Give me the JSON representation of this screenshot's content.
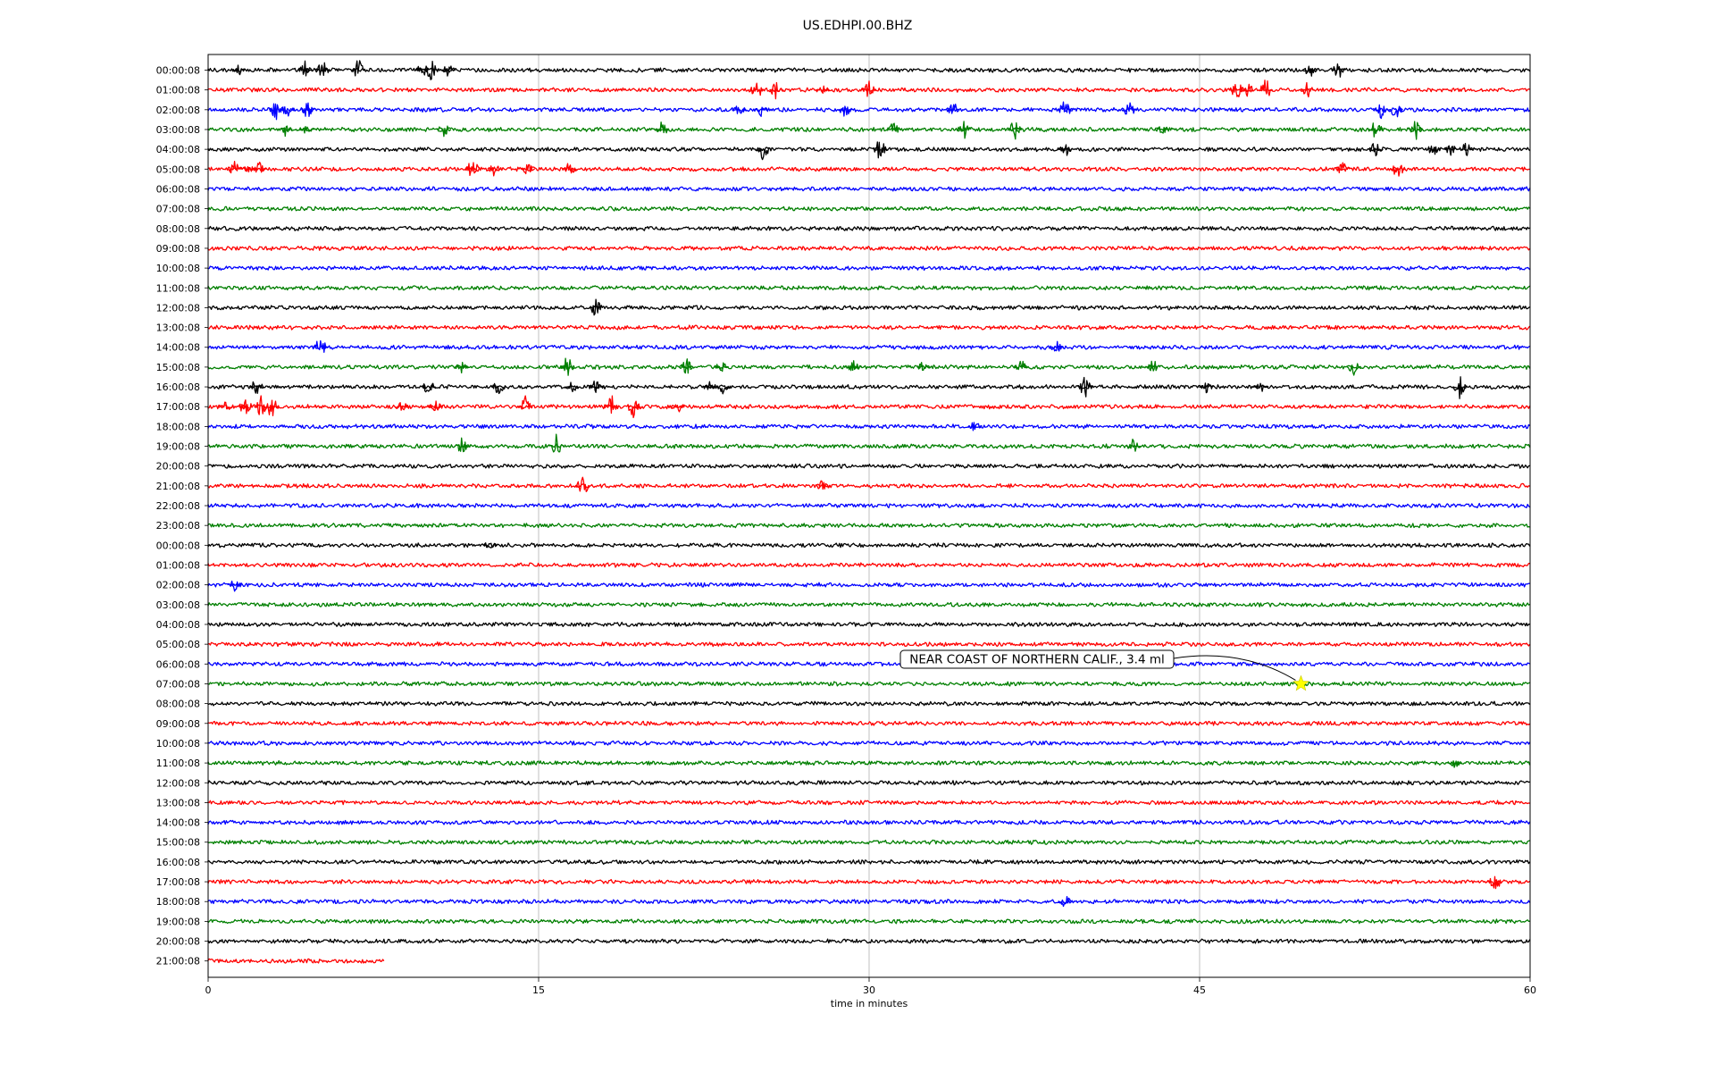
{
  "chart_data": {
    "type": "line",
    "title": "US.EDHPI.00.BHZ",
    "xlabel": "time in minutes",
    "ylabel": "",
    "xlim": [
      0,
      60
    ],
    "xticks": [
      "0",
      "15",
      "30",
      "45",
      "60"
    ],
    "xtick_values": [
      0,
      15,
      30,
      45,
      60
    ],
    "grid": "vertical lines at x ticks",
    "trace_colors": [
      "#000000",
      "#ff0000",
      "#0000ff",
      "#007f00"
    ],
    "row_labels": [
      "00:00:08",
      "01:00:08",
      "02:00:08",
      "03:00:08",
      "04:00:08",
      "05:00:08",
      "06:00:08",
      "07:00:08",
      "08:00:08",
      "09:00:08",
      "10:00:08",
      "11:00:08",
      "12:00:08",
      "13:00:08",
      "14:00:08",
      "15:00:08",
      "16:00:08",
      "17:00:08",
      "18:00:08",
      "19:00:08",
      "20:00:08",
      "21:00:08",
      "22:00:08",
      "23:00:08",
      "00:00:08",
      "01:00:08",
      "02:00:08",
      "03:00:08",
      "04:00:08",
      "05:00:08",
      "06:00:08",
      "07:00:08",
      "08:00:08",
      "09:00:08",
      "10:00:08",
      "11:00:08",
      "12:00:08",
      "13:00:08",
      "14:00:08",
      "15:00:08",
      "16:00:08",
      "17:00:08",
      "18:00:08",
      "19:00:08",
      "20:00:08",
      "21:00:08"
    ],
    "last_row_end_minute": 8,
    "activity": [
      {
        "row": 0,
        "minutes": [
          1.4,
          4.4,
          5.2,
          6.8,
          9.7,
          10.1,
          10.9,
          50,
          51.3
        ]
      },
      {
        "row": 1,
        "minutes": [
          24.9,
          25.8,
          27.9,
          30,
          46.7,
          47.2,
          48,
          49.9
        ]
      },
      {
        "row": 2,
        "minutes": [
          3.1,
          3.6,
          4.5,
          24.1,
          25.1,
          28.9,
          33.8,
          38.9,
          41.8,
          53.2,
          53.9
        ]
      },
      {
        "row": 3,
        "minutes": [
          3.5,
          4.5,
          10.7,
          20.6,
          31.1,
          34.3,
          36.6,
          43.3,
          53,
          54.8
        ]
      },
      {
        "row": 4,
        "minutes": [
          25.2,
          30.5,
          38.9,
          53,
          55.6,
          56.4,
          57.1
        ]
      },
      {
        "row": 5,
        "minutes": [
          1.2,
          1.8,
          2.3,
          12,
          13,
          14.5,
          16.4,
          51.5,
          54
        ]
      },
      {
        "row": 12,
        "minutes": [
          17.6
        ]
      },
      {
        "row": 14,
        "minutes": [
          5.1,
          38.5
        ]
      },
      {
        "row": 15,
        "minutes": [
          11.5,
          16.3,
          21.7,
          23.3,
          29.3,
          32.5,
          36.9,
          42.9,
          52
        ]
      },
      {
        "row": 16,
        "minutes": [
          2.2,
          10,
          13.2,
          16.5,
          17.6,
          22.8,
          23.4,
          39.8,
          45.3,
          47.8,
          56.8
        ]
      },
      {
        "row": 17,
        "minutes": [
          0.8,
          1.7,
          2.4,
          2.9,
          8.8,
          10.3,
          14.4,
          18.3,
          19.3,
          21.3
        ]
      },
      {
        "row": 18,
        "minutes": [
          34.8
        ]
      },
      {
        "row": 19,
        "minutes": [
          11.5,
          15.8,
          42
        ]
      },
      {
        "row": 21,
        "minutes": [
          17,
          27.9
        ]
      },
      {
        "row": 24,
        "minutes": [
          12.8
        ]
      },
      {
        "row": 26,
        "minutes": [
          1.2
        ]
      },
      {
        "row": 35,
        "minutes": [
          56.6
        ]
      },
      {
        "row": 41,
        "minutes": [
          58.4
        ]
      },
      {
        "row": 42,
        "minutes": [
          38.9
        ]
      }
    ],
    "annotations": [
      {
        "text": "NEAR COAST OF NORTHERN CALIF., 3.4 ml",
        "row": 31,
        "minute": 49.6,
        "marker": "star",
        "marker_color": "#ffff00"
      }
    ]
  }
}
